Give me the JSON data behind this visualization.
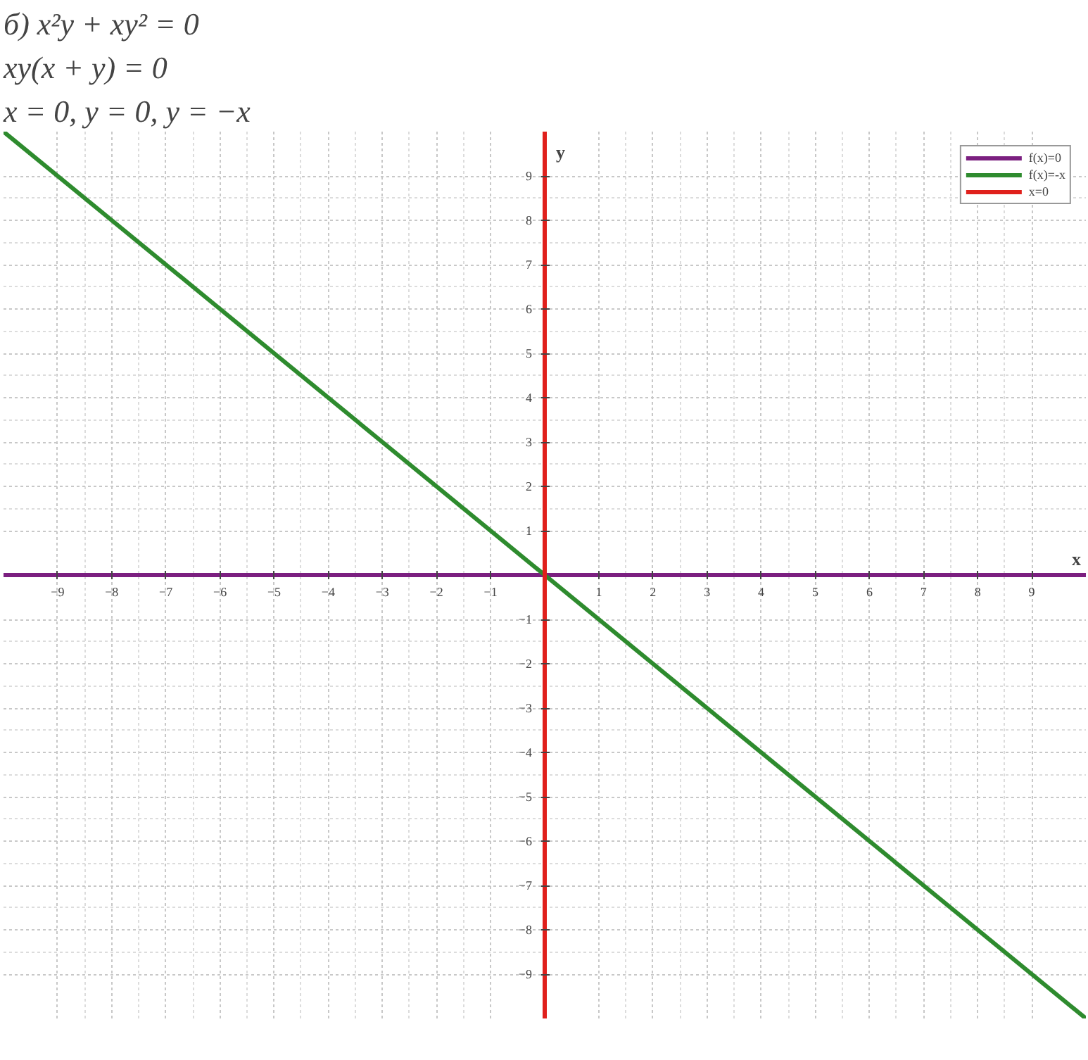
{
  "chart_data": {
    "type": "line",
    "title": "б) x²y + xy² = 0",
    "annotations": [
      "xy(x + y) = 0",
      "x = 0, y = 0, y = −x"
    ],
    "xlabel": "x",
    "ylabel": "y",
    "xlim": [
      -10,
      10
    ],
    "ylim": [
      -10,
      10
    ],
    "xticks": [
      -9,
      -8,
      -7,
      -6,
      -5,
      -4,
      -3,
      -2,
      -1,
      1,
      2,
      3,
      4,
      5,
      6,
      7,
      8,
      9
    ],
    "yticks": [
      -9,
      -8,
      -7,
      -6,
      -5,
      -4,
      -3,
      -2,
      -1,
      1,
      2,
      3,
      4,
      5,
      6,
      7,
      8,
      9
    ],
    "grid": true,
    "legend": "top right",
    "marker": "none",
    "line_style": "solid",
    "series": [
      {
        "name": "f(x)=0",
        "color": "#7b1f80",
        "x": [
          -10,
          10
        ],
        "values": [
          0,
          0
        ]
      },
      {
        "name": "f(x)=-x",
        "color": "#2e8b2e",
        "x": [
          -10,
          10
        ],
        "values": [
          10,
          -10
        ]
      },
      {
        "name": "x=0",
        "color": "#e0201c",
        "x": [
          0,
          0
        ],
        "values": [
          -10,
          10
        ]
      }
    ]
  }
}
